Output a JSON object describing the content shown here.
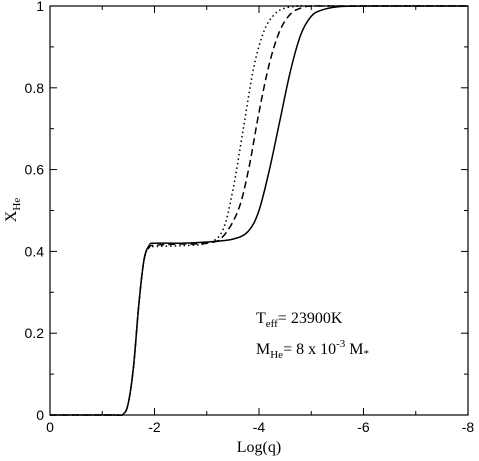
{
  "chart_data": {
    "type": "line",
    "title": "",
    "xlabel": "Log(q)",
    "ylabel": {
      "main": "X",
      "sub": "He"
    },
    "xlim": [
      0,
      -8
    ],
    "ylim": [
      0,
      1
    ],
    "x_ticks": [
      0,
      -2,
      -4,
      -6,
      -8
    ],
    "x_tick_labels": [
      "0",
      "-2",
      "-4",
      "-6",
      "-8"
    ],
    "y_ticks": [
      0,
      0.2,
      0.4,
      0.6,
      0.8,
      1
    ],
    "y_tick_labels": [
      "0",
      "0.2",
      "0.4",
      "0.6",
      "0.8",
      "1"
    ],
    "grid": false,
    "series": [
      {
        "line_style": "solid",
        "x": [
          0,
          -1.2,
          -1.4,
          -1.5,
          -1.6,
          -1.7,
          -1.8,
          -1.9,
          -2.0,
          -2.5,
          -3.0,
          -3.5,
          -3.8,
          -4.0,
          -4.2,
          -4.4,
          -4.6,
          -4.8,
          -5.0,
          -5.2,
          -5.5,
          -6.0,
          -8.0
        ],
        "y": [
          0,
          0,
          0.002,
          0.03,
          0.12,
          0.27,
          0.38,
          0.415,
          0.42,
          0.42,
          0.423,
          0.43,
          0.45,
          0.5,
          0.6,
          0.72,
          0.84,
          0.93,
          0.975,
          0.99,
          0.998,
          1.0,
          1.0
        ]
      },
      {
        "line_style": "dashed",
        "x": [
          0,
          -1.2,
          -1.4,
          -1.5,
          -1.6,
          -1.7,
          -1.8,
          -1.9,
          -2.0,
          -2.5,
          -3.0,
          -3.3,
          -3.6,
          -3.8,
          -4.0,
          -4.2,
          -4.4,
          -4.6,
          -4.8,
          -5.0,
          -5.5,
          -8.0
        ],
        "y": [
          0,
          0,
          0.002,
          0.03,
          0.12,
          0.27,
          0.38,
          0.41,
          0.415,
          0.418,
          0.42,
          0.435,
          0.5,
          0.6,
          0.74,
          0.86,
          0.94,
          0.98,
          0.995,
          1.0,
          1.0,
          1.0
        ]
      },
      {
        "line_style": "dotted",
        "x": [
          0,
          -1.2,
          -1.4,
          -1.5,
          -1.6,
          -1.7,
          -1.8,
          -1.9,
          -2.0,
          -2.5,
          -3.0,
          -3.3,
          -3.5,
          -3.7,
          -3.9,
          -4.1,
          -4.3,
          -4.5,
          -4.8,
          -5.0,
          -8.0
        ],
        "y": [
          0,
          0,
          0.002,
          0.03,
          0.12,
          0.27,
          0.38,
          0.41,
          0.412,
          0.414,
          0.42,
          0.45,
          0.55,
          0.7,
          0.85,
          0.94,
          0.98,
          0.995,
          1.0,
          1.0,
          1.0
        ]
      }
    ],
    "annotations": {
      "teff": {
        "main": "T",
        "sub": "eff",
        "rest": "= 23900K"
      },
      "mhe": {
        "main": "M",
        "sub": "He",
        "rest": "= 8 x 10",
        "sup": "-3",
        "tail": " M",
        "tail_sub": "*"
      }
    }
  }
}
